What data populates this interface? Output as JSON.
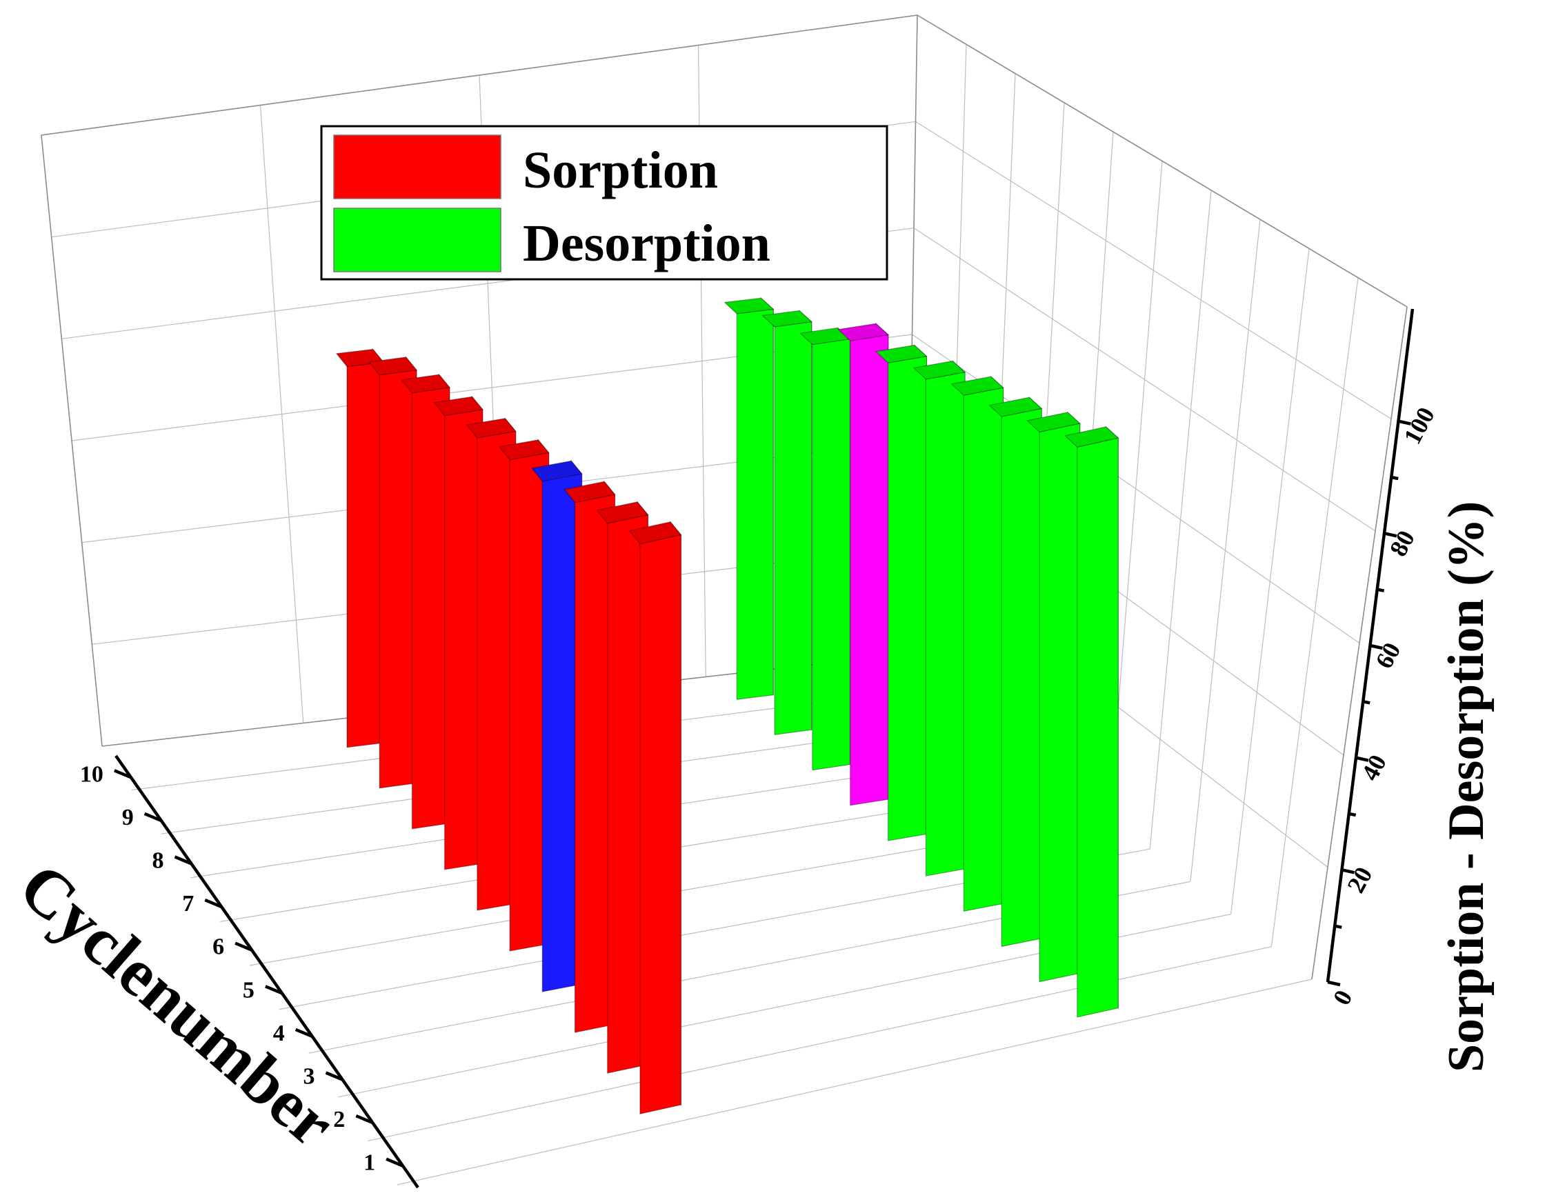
{
  "chart_data": {
    "type": "bar",
    "style": "3d",
    "title": "",
    "xlabel": "Cyclenumber",
    "ylabel": "",
    "zlabel": "Sorption - Desorption (%)",
    "categories": [
      "1",
      "2",
      "3",
      "4",
      "5",
      "6",
      "7",
      "8",
      "9",
      "10"
    ],
    "zticks": [
      "0",
      "20",
      "40",
      "60",
      "80",
      "100"
    ],
    "zlim": [
      0,
      100
    ],
    "series": [
      {
        "name": "Sorption",
        "color": "#ff0000",
        "values": [
          98,
          96,
          94,
          92,
          90,
          88,
          86,
          84,
          81,
          76
        ],
        "highlight_color": "#1a1aff",
        "highlight_index": 3
      },
      {
        "name": "Desorption",
        "color": "#00ff00",
        "values": [
          98,
          96,
          94,
          93,
          91,
          89,
          88,
          82,
          80,
          77
        ],
        "highlight_color": "#ff00ff",
        "highlight_index": 6
      }
    ],
    "legend": {
      "position": "top-center"
    },
    "grid": true
  }
}
